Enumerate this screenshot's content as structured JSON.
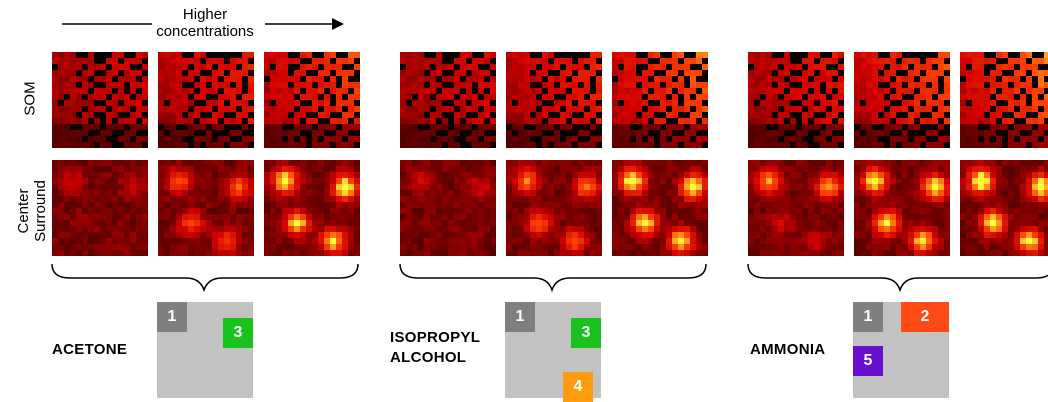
{
  "header": {
    "label_line1": "Higher",
    "label_line2": "concentrations"
  },
  "row_labels": {
    "som": "SOM",
    "center_surround_line1": "Center",
    "center_surround_line2": "Surround"
  },
  "colors": {
    "gray": "#7f7f7f",
    "green": "#19c21d",
    "orange": "#ff9c0e",
    "red": "#fd4a16",
    "purple": "#6a0fcf",
    "panel": "#c2c2c2"
  },
  "groups": [
    {
      "name_line1": "ACETONE",
      "name_line2": "",
      "som_levels": [
        0.25,
        0.45,
        0.72
      ],
      "cs_levels": [
        0.2,
        0.55,
        0.9
      ],
      "tiles": [
        {
          "label": "1",
          "color": "gray"
        },
        {
          "label": "3",
          "color": "green"
        }
      ]
    },
    {
      "name_line1": "ISOPROPYL",
      "name_line2": "ALCOHOL",
      "som_levels": [
        0.28,
        0.5,
        0.85
      ],
      "cs_levels": [
        0.2,
        0.6,
        0.95
      ],
      "tiles": [
        {
          "label": "1",
          "color": "gray"
        },
        {
          "label": "3",
          "color": "green"
        },
        {
          "label": "4",
          "color": "orange"
        }
      ]
    },
    {
      "name_line1": "AMMONIA",
      "name_line2": "",
      "som_levels": [
        0.4,
        0.75,
        0.95
      ],
      "cs_levels": [
        0.7,
        0.9,
        0.95
      ],
      "tiles": [
        {
          "label": "1",
          "color": "gray"
        },
        {
          "label": "2",
          "color": "red"
        },
        {
          "label": "5",
          "color": "purple"
        }
      ]
    }
  ]
}
